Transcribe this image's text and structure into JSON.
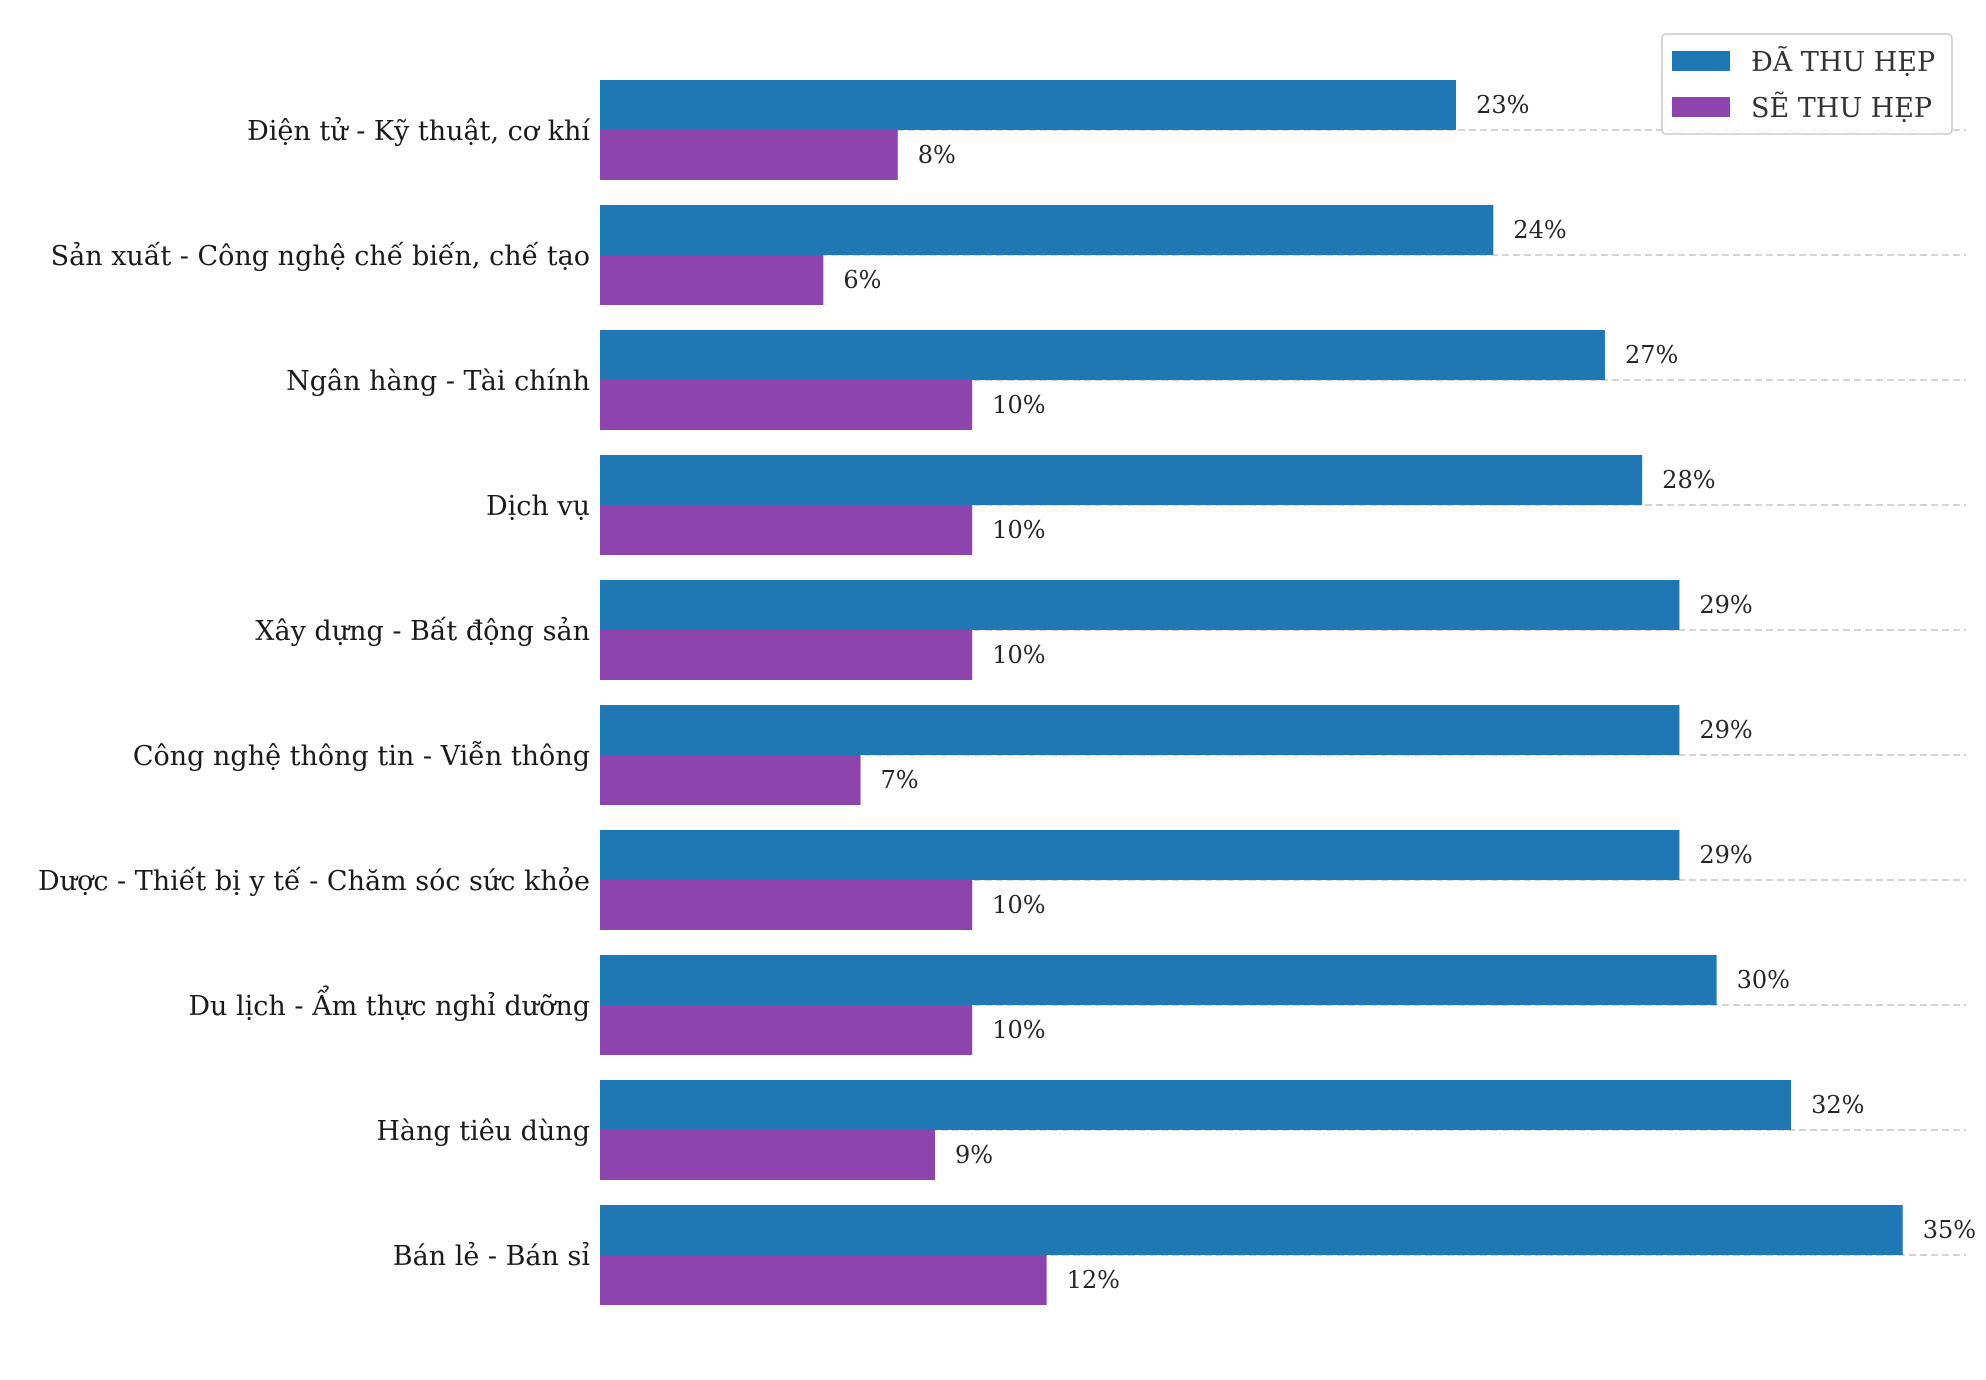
{
  "chart_data": {
    "type": "bar",
    "orientation": "horizontal",
    "categories": [
      "Điện tử - Kỹ thuật, cơ khí",
      "Sản xuất - Công nghệ chế biến, chế tạo",
      "Ngân hàng - Tài chính",
      "Dịch vụ",
      "Xây dựng - Bất động sản",
      "Công nghệ thông tin - Viễn thông",
      "Dược - Thiết bị y tế - Chăm sóc sức khỏe",
      "Du lịch - Ẩm thực nghỉ dưỡng",
      "Hàng tiêu dùng",
      "Bán lẻ - Bán sỉ"
    ],
    "series": [
      {
        "name": "ĐÃ THU HẸP",
        "color": "#1f77b4",
        "values": [
          23,
          24,
          27,
          28,
          29,
          29,
          29,
          30,
          32,
          35
        ],
        "labels": [
          "23%",
          "24%",
          "27%",
          "28%",
          "29%",
          "29%",
          "29%",
          "30%",
          "32%",
          "35%"
        ]
      },
      {
        "name": "SẼ THU HẸP",
        "color": "#8e44ad",
        "values": [
          8,
          6,
          10,
          10,
          10,
          7,
          10,
          10,
          9,
          12
        ],
        "labels": [
          "8%",
          "6%",
          "10%",
          "10%",
          "10%",
          "7%",
          "10%",
          "10%",
          "9%",
          "12%"
        ]
      }
    ],
    "xlim": [
      0,
      36.7
    ],
    "unit": "%",
    "grid": "horizontal dashed at category centers",
    "legend": "top-right",
    "title": "",
    "xlabel": "",
    "ylabel": ""
  }
}
